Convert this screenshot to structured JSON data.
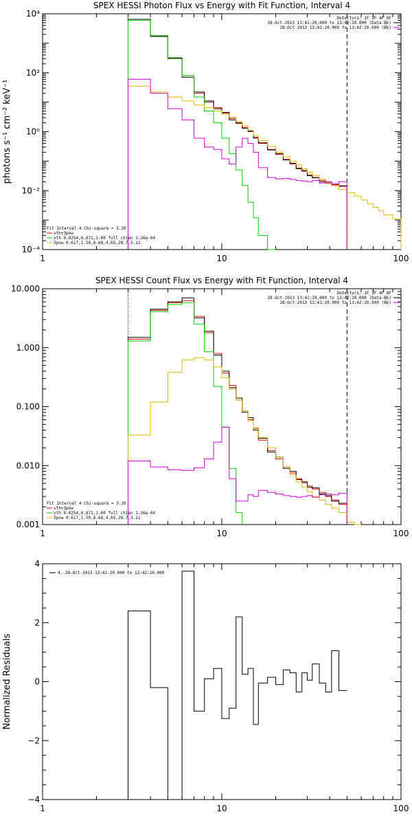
{
  "chart_data": [
    {
      "type": "line",
      "title": "SPEX HESSI Photon Flux vs Energy with Fit Function, Interval 4",
      "xlabel": "",
      "ylabel": "photons s⁻¹ cm⁻² keV⁻¹",
      "xscale": "log",
      "yscale": "log",
      "xlim": [
        1,
        100
      ],
      "ylim": [
        0.0001,
        10000
      ],
      "x_ticks": [
        {
          "v": 1,
          "label": "1"
        },
        {
          "v": 10,
          "label": "10"
        },
        {
          "v": 100,
          "label": "100"
        }
      ],
      "y_ticks": [
        {
          "v": 0.0001,
          "label": "10⁻⁴"
        },
        {
          "v": 0.01,
          "label": "10⁻²"
        },
        {
          "v": 1,
          "label": "10⁰"
        },
        {
          "v": 100,
          "label": "10²"
        },
        {
          "v": 10000,
          "label": "10⁴"
        }
      ],
      "legend_top_right": [
        {
          "text": "Detectors: 1F 3F 4F 8F",
          "color": ""
        },
        {
          "text": "28-Oct-2013 13:41:20.000 to 13:42:20.000 (Data-Bk)",
          "color": "#000000"
        },
        {
          "text": "28-Oct-2013 13:41:20.000 to 13:42:20.000 (Bk)",
          "color": "#cc00cc"
        }
      ],
      "legend_bottom_left": [
        {
          "text": "Fit Interval 4   Chi-square = 3.20",
          "color": ""
        },
        {
          "text": "vth+3pow",
          "color": "#dd0000"
        },
        {
          "text": "vth 0.0254,0.871,1.00  full chian 1.26e-04",
          "color": "#00cc00"
        },
        {
          "text": "3pow 0.617,1.50,8.68,4.65,28.7,3.11",
          "color": "#ddbb00"
        }
      ],
      "vlines": [
        {
          "x": 3,
          "style": "dotted"
        },
        {
          "x": 50,
          "style": "dashed"
        }
      ],
      "edges": [
        3,
        4,
        5,
        6,
        7,
        8,
        9,
        10,
        11,
        12,
        13,
        14,
        15,
        16,
        18,
        20,
        22,
        24,
        26,
        28,
        30,
        32,
        35,
        38,
        41,
        45,
        50,
        55,
        60,
        65,
        70,
        75,
        80,
        90,
        100
      ],
      "series": [
        {
          "name": "vth+3pow",
          "color": "#dd0000",
          "values": [
            6000,
            1800,
            300,
            80,
            20,
            10,
            6.5,
            4.2,
            2.8,
            1.9,
            1.4,
            1.0,
            0.65,
            0.4,
            0.25,
            0.17,
            0.115,
            0.08,
            0.058,
            0.045,
            0.034,
            0.027,
            0.022,
            0.018,
            0.016,
            0.014,
            null,
            null,
            null,
            null,
            null,
            null,
            null,
            null
          ]
        },
        {
          "name": "Data-Bk",
          "color": "#000000",
          "values": [
            6500,
            1700,
            320,
            70,
            22,
            11,
            6.0,
            4.5,
            2.5,
            2.0,
            1.3,
            1.05,
            0.6,
            0.42,
            0.24,
            0.18,
            0.11,
            0.085,
            0.055,
            0.048,
            0.032,
            0.028,
            0.02,
            0.019,
            0.015,
            0.0145,
            null,
            null,
            null,
            null,
            null,
            null,
            null,
            null
          ]
        },
        {
          "name": "vth",
          "color": "#00cc00",
          "values": [
            6000,
            1800,
            300,
            80,
            15,
            5,
            2,
            0.6,
            0.18,
            0.05,
            0.015,
            0.004,
            0.0012,
            0.0003,
            6e-05,
            null,
            null,
            null,
            null,
            null,
            null,
            null,
            null,
            null,
            null,
            null,
            null,
            null,
            null,
            null,
            null,
            null,
            null,
            null
          ]
        },
        {
          "name": "3pow",
          "color": "#ddbb00",
          "values": [
            35,
            22,
            15,
            11,
            8,
            6.5,
            5,
            4,
            3,
            2.2,
            1.6,
            1.1,
            0.75,
            0.5,
            0.32,
            0.2,
            0.14,
            0.1,
            0.075,
            0.055,
            0.042,
            0.033,
            0.025,
            0.019,
            0.015,
            0.011,
            0.0085,
            0.0065,
            0.0048,
            0.0036,
            0.0027,
            0.0021,
            0.0015,
            0.0011
          ]
        },
        {
          "name": "Bk",
          "color": "#cc00cc",
          "values": [
            60,
            20,
            6,
            2.5,
            0.6,
            0.3,
            0.25,
            0.12,
            0.08,
            0.3,
            0.6,
            0.4,
            0.2,
            0.06,
            0.028,
            0.025,
            0.026,
            0.024,
            0.022,
            0.021,
            0.02,
            0.022,
            0.018,
            0.02,
            0.017,
            0.02,
            null,
            null,
            null,
            null,
            null,
            null,
            null,
            null
          ]
        }
      ]
    },
    {
      "type": "line",
      "title": "SPEX HESSI Count Flux vs Energy with Fit Function, Interval 4",
      "xlabel": "",
      "ylabel": "",
      "xscale": "log",
      "yscale": "log",
      "xlim": [
        1,
        100
      ],
      "ylim": [
        0.001,
        10
      ],
      "x_ticks": [
        {
          "v": 1,
          "label": "1"
        },
        {
          "v": 10,
          "label": "10"
        },
        {
          "v": 100,
          "label": "100"
        }
      ],
      "y_ticks": [
        {
          "v": 0.001,
          "label": "0.001"
        },
        {
          "v": 0.01,
          "label": "0.010"
        },
        {
          "v": 0.1,
          "label": "0.100"
        },
        {
          "v": 1,
          "label": "1.000"
        },
        {
          "v": 10,
          "label": "10.000"
        }
      ],
      "legend_top_right": [
        {
          "text": "Detectors: 1F 3F 4F 8F",
          "color": ""
        },
        {
          "text": "28-Oct-2013 13:41:20.000 to 13:42:20.000 (Data-Bk)",
          "color": "#000000"
        },
        {
          "text": "28-Oct-2013 13:41:20.000 to 13:42:20.000 (Bk)",
          "color": "#cc00cc"
        }
      ],
      "legend_bottom_left": [
        {
          "text": "Fit Interval 4   Chi-square = 3.20",
          "color": ""
        },
        {
          "text": "vth+3pow",
          "color": "#dd0000"
        },
        {
          "text": "vth 0.0254,0.871,1.00  full chian 1.26e-04",
          "color": "#00cc00"
        },
        {
          "text": "3pow 0.617,1.50,8.68,4.65,28.7,3.11",
          "color": "#ddbb00"
        }
      ],
      "vlines": [
        {
          "x": 3,
          "style": "dotted"
        },
        {
          "x": 50,
          "style": "dashed"
        }
      ],
      "edges": [
        3,
        4,
        5,
        6,
        7,
        8,
        9,
        10,
        11,
        12,
        13,
        14,
        15,
        16,
        18,
        20,
        22,
        24,
        26,
        28,
        30,
        32,
        35,
        38,
        41,
        45,
        50,
        55,
        60,
        65,
        70,
        75,
        80,
        90,
        100
      ],
      "series": [
        {
          "name": "vth+3pow",
          "color": "#dd0000",
          "values": [
            1.4,
            4.3,
            5.8,
            6.3,
            3.4,
            1.8,
            0.8,
            0.37,
            0.23,
            0.13,
            0.085,
            0.06,
            0.043,
            0.027,
            0.018,
            0.013,
            0.0095,
            0.0075,
            0.006,
            0.0051,
            0.0045,
            0.004,
            0.0035,
            0.003,
            0.0026,
            0.0022,
            null,
            null,
            null,
            null,
            null,
            null,
            null,
            null
          ]
        },
        {
          "name": "Data-Bk",
          "color": "#000000",
          "values": [
            1.5,
            4.5,
            6.0,
            7.0,
            3.2,
            1.9,
            0.75,
            0.4,
            0.21,
            0.14,
            0.08,
            0.065,
            0.04,
            0.029,
            0.017,
            0.014,
            0.009,
            0.008,
            0.0058,
            0.0053,
            0.0043,
            0.0042,
            0.0033,
            0.0031,
            0.0025,
            0.0023,
            null,
            null,
            null,
            null,
            null,
            null,
            null,
            null
          ]
        },
        {
          "name": "vth",
          "color": "#00cc00",
          "values": [
            1.3,
            4.1,
            5.4,
            5.8,
            2.5,
            0.85,
            0.22,
            0.045,
            0.009,
            0.0016,
            null,
            null,
            null,
            null,
            null,
            null,
            null,
            null,
            null,
            null,
            null,
            null,
            null,
            null,
            null,
            null,
            null,
            null,
            null,
            null,
            null,
            null,
            null,
            null
          ]
        },
        {
          "name": "3pow",
          "color": "#ddbb00",
          "values": [
            0.033,
            0.12,
            0.38,
            0.62,
            0.68,
            0.62,
            0.47,
            0.31,
            0.2,
            0.13,
            0.085,
            0.058,
            0.042,
            0.03,
            0.02,
            0.014,
            0.0095,
            0.007,
            0.0053,
            0.0043,
            0.0036,
            0.003,
            0.0026,
            0.0022,
            0.0019,
            0.0016,
            0.0011,
            0.0007,
            null,
            null,
            null,
            null,
            null,
            null
          ]
        },
        {
          "name": "Bk",
          "color": "#cc00cc",
          "values": [
            0.012,
            0.0095,
            0.0085,
            0.0083,
            0.0092,
            0.013,
            0.025,
            0.045,
            0.006,
            0.0025,
            0.0025,
            0.0032,
            0.003,
            0.0038,
            0.0035,
            0.0033,
            0.0031,
            0.003,
            0.0029,
            0.003,
            0.0031,
            0.0029,
            0.0032,
            0.0033,
            0.0032,
            0.0034,
            null,
            null,
            null,
            null,
            null,
            null,
            null,
            null
          ]
        }
      ]
    },
    {
      "type": "line",
      "title": "",
      "xlabel": "",
      "ylabel": "Normalized Residuals",
      "xscale": "log",
      "yscale": "linear",
      "xlim": [
        1,
        100
      ],
      "ylim": [
        -4,
        4
      ],
      "x_ticks": [
        {
          "v": 1,
          "label": "1"
        },
        {
          "v": 10,
          "label": "10"
        },
        {
          "v": 100,
          "label": "100"
        }
      ],
      "y_ticks": [
        {
          "v": -4,
          "label": "−4"
        },
        {
          "v": -2,
          "label": "−2"
        },
        {
          "v": 0,
          "label": "0"
        },
        {
          "v": 2,
          "label": "2"
        },
        {
          "v": 4,
          "label": "4"
        }
      ],
      "legend_top_right": [],
      "legend_bottom_left": [],
      "legend_top_left": [
        {
          "text": "4. 28-Oct-2013 13:41:20.000 to 13:42:20.000",
          "color": "#000000"
        }
      ],
      "vlines": [],
      "edges": [
        3,
        4,
        5,
        6,
        7,
        8,
        9,
        10,
        11,
        12,
        13,
        14,
        15,
        16,
        18,
        20,
        22,
        24,
        26,
        28,
        30,
        32,
        35,
        38,
        41,
        45,
        50
      ],
      "series": [
        {
          "name": "Residuals",
          "color": "#000000",
          "values": [
            2.4,
            -0.2,
            -4.1,
            3.75,
            -1.0,
            0.1,
            0.45,
            -1.25,
            -0.9,
            2.2,
            0.25,
            0.45,
            -1.45,
            -0.05,
            0.15,
            -0.1,
            0.4,
            0.3,
            -0.35,
            0.3,
            0.05,
            0.6,
            -0.05,
            -0.35,
            1.05,
            -0.3
          ]
        }
      ]
    }
  ]
}
